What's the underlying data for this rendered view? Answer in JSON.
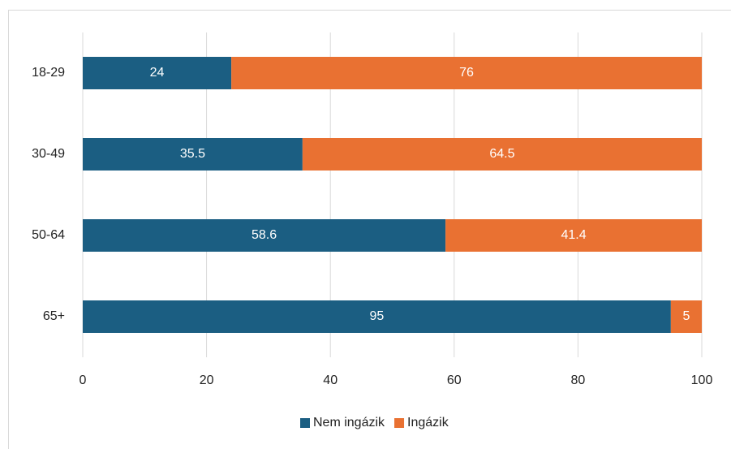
{
  "chart_data": {
    "type": "bar",
    "orientation": "horizontal",
    "stacked": true,
    "categories": [
      "18-29",
      "30-49",
      "50-64",
      "65+"
    ],
    "series": [
      {
        "name": "Nem ingázik",
        "color": "#1b5e82",
        "values": [
          24,
          35.5,
          58.6,
          95
        ]
      },
      {
        "name": "Ingázik",
        "color": "#e97132",
        "values": [
          76,
          64.5,
          41.4,
          5
        ]
      }
    ],
    "xlim": [
      0,
      100
    ],
    "xticks": [
      0,
      20,
      40,
      60,
      80,
      100
    ],
    "grid": true,
    "legend": "bottom"
  }
}
